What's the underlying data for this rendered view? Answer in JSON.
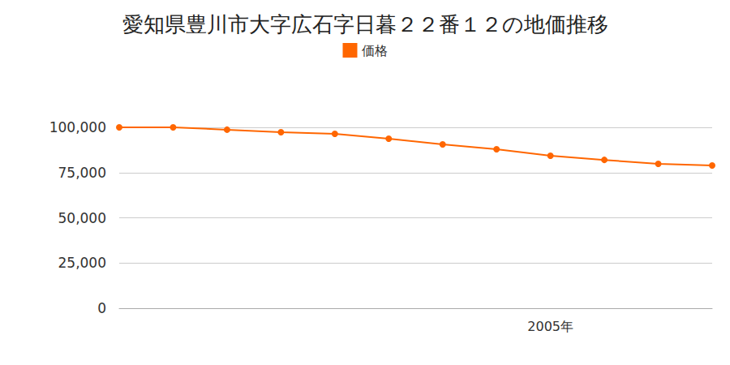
{
  "chart_data": {
    "type": "line",
    "title": "愛知県豊川市大字広石字日暮２２番１２の地価推移",
    "categories": [
      null,
      null,
      null,
      null,
      null,
      null,
      null,
      null,
      "2005年",
      null,
      null,
      null
    ],
    "series": [
      {
        "name": "価格",
        "color": "#ff6600",
        "values": [
          100000,
          100000,
          98700,
          97300,
          96400,
          93700,
          90600,
          87900,
          84300,
          82000,
          79800,
          78900
        ]
      }
    ],
    "ylim": [
      0,
      100000
    ],
    "yticks": [
      0,
      {
        "value": 25000,
        "label": "25,000"
      },
      {
        "value": 50000,
        "label": "50,000"
      },
      {
        "value": 75000,
        "label": "75,000"
      },
      {
        "value": 100000,
        "label": "100,000"
      }
    ],
    "grid": true,
    "marker": "circle",
    "legend": "top"
  }
}
